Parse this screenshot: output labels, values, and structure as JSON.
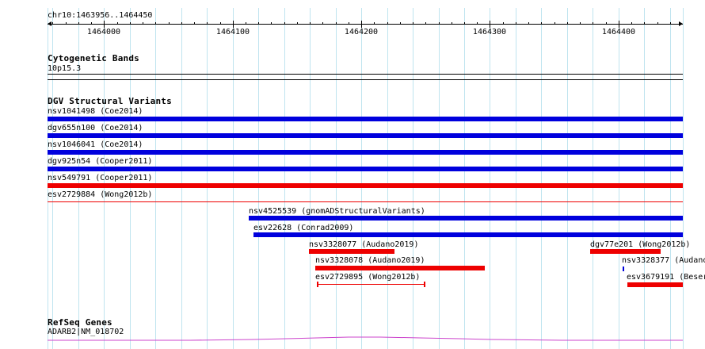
{
  "ruler": {
    "location": "chr10:1463956..1464450",
    "ticks": [
      "1464000",
      "1464100",
      "1464200",
      "1464300",
      "1464400"
    ]
  },
  "tracks": {
    "cytobands": {
      "title": "Cytogenetic Bands",
      "band": "10p15.3"
    },
    "dgv": {
      "title": "DGV Structural Variants",
      "features": [
        {
          "label": "nsv1041498 (Coe2014)"
        },
        {
          "label": "dgv655n100 (Coe2014)"
        },
        {
          "label": "nsv1046041 (Coe2014)"
        },
        {
          "label": "dgv925n54 (Cooper2011)"
        },
        {
          "label": "nsv549791 (Cooper2011)"
        },
        {
          "label": "esv2729884 (Wong2012b)"
        },
        {
          "label": "nsv4525539 (gnomADStructuralVariants)"
        },
        {
          "label": "esv22628 (Conrad2009)"
        },
        {
          "label": "nsv3328077 (Audano2019)"
        },
        {
          "label": "dgv77e201 (Wong2012b)"
        },
        {
          "label": "nsv3328078 (Audano2019)"
        },
        {
          "label": "nsv3328377 (Audano"
        },
        {
          "label": "esv2729895 (Wong2012b)"
        },
        {
          "label": "esv3679191 (Beser"
        }
      ]
    },
    "refseq": {
      "title": "RefSeq Genes",
      "gene": "ADARB2|NM_018702"
    }
  },
  "colors": {
    "gain": "#0000dd",
    "loss": "#ee0000",
    "grid": "#bfe4ef",
    "gene": "#cc44cc"
  }
}
